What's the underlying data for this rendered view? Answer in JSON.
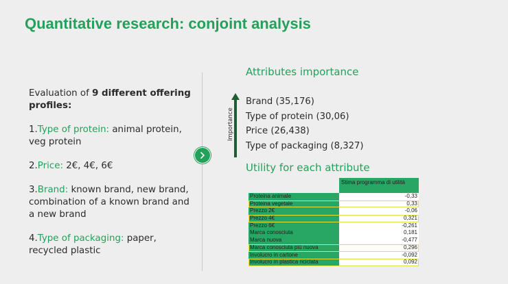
{
  "slide": {
    "title": "Quantitative research: conjoint analysis"
  },
  "left": {
    "intro_prefix": "Evaluation of ",
    "intro_bold": "9 different offering profiles",
    "intro_suffix": ":",
    "items": [
      {
        "num": "1.",
        "label": "Type of protein:",
        "text": " animal protein, veg protein"
      },
      {
        "num": "2.",
        "label": "Price:",
        "text": " 2€, 4€, 6€"
      },
      {
        "num": "3.",
        "label": "Brand:",
        "text": " known brand, new brand, combination of a known brand and a new brand"
      },
      {
        "num": "4.",
        "label": "Type of packaging:",
        "text": " paper, recycled plastic"
      }
    ]
  },
  "importance": {
    "heading": "Attributes importance",
    "axis_label": "Importance",
    "items": [
      "Brand (35,176)",
      "Type of protein (30,06)",
      "Price (26,438)",
      "Type of packaging (8,327)"
    ]
  },
  "utility": {
    "heading": "Utility for each attribute",
    "column_header": "Stima programma di utilità",
    "rows": [
      {
        "label": "Proteina animale",
        "value": "-0,33",
        "highlight": false
      },
      {
        "label": "Proteina vegetale",
        "value": "0,33",
        "highlight": true
      },
      {
        "label": "Prezzo 2€",
        "value": "-0,06",
        "highlight": false
      },
      {
        "label": "Prezzo 4€",
        "value": "0,321",
        "highlight": true
      },
      {
        "label": "Prezzo 6€",
        "value": "-0,261",
        "highlight": false
      },
      {
        "label": "Marca conosciuta",
        "value": "0,181",
        "highlight": false
      },
      {
        "label": "Marca nuova",
        "value": "-0,477",
        "highlight": false
      },
      {
        "label": "Marca conosciuta più nuova",
        "value": "0,296",
        "highlight": true
      },
      {
        "label": "Involucro in cartone",
        "value": "-0,092",
        "highlight": false
      },
      {
        "label": "Involucro in plastica riciclata",
        "value": "0,092",
        "highlight": true
      }
    ]
  },
  "colors": {
    "accent": "#23a05a",
    "highlight_outline": "#e3e04a",
    "background": "#eeeeee"
  },
  "icons": {
    "next": "chevron-right-icon",
    "importance_arrow": "arrow-up-icon"
  }
}
